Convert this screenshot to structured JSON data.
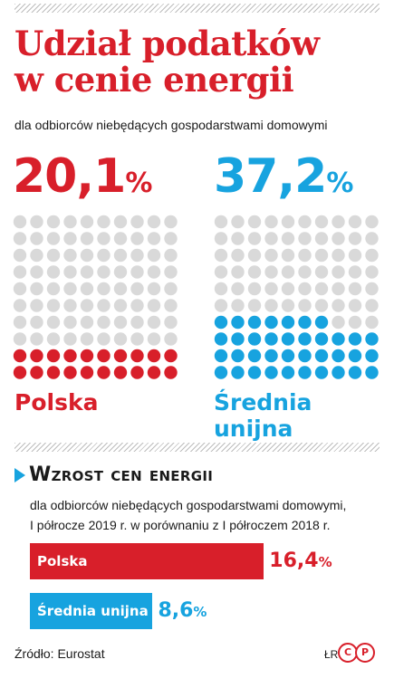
{
  "header": {
    "title_line1": "Udział podatków",
    "title_line2": "w cenie energii",
    "subtitle": "dla odbiorców niebędących gospodarstwami domowymi"
  },
  "section2": {
    "title": "Wzrost cen energii",
    "subtitle_line1": "dla odbiorców niebędących gospodarstwami domowymi,",
    "subtitle_line2": "I półrocze 2019 r. w porównaniu z I półroczem 2018 r."
  },
  "footer": {
    "source": "Źródło: Eurostat",
    "author": "ŁR",
    "logo_letters": [
      "C",
      "P"
    ]
  },
  "colors": {
    "poland": "#d81f2a",
    "eu": "#17a3df",
    "inactive_dot": "#d9d9d9",
    "hatch": "#bdbdbd"
  },
  "icons": [
    "chevron-right-icon",
    "copyright-logo"
  ],
  "chart_data": [
    {
      "type": "waffle",
      "title": "Udział podatków w cenie energii",
      "subtitle": "dla odbiorców niebędących gospodarstwami domowymi",
      "grid": {
        "rows": 10,
        "cols": 10
      },
      "series": [
        {
          "name": "Polska",
          "value": 20.1,
          "display": "20,1",
          "unit": "%"
        },
        {
          "name": "Średnia unijna",
          "value": 37.2,
          "display": "37,2",
          "unit": "%"
        }
      ]
    },
    {
      "type": "bar",
      "orientation": "horizontal",
      "title": "Wzrost cen energii",
      "categories": [
        "Polska",
        "Średnia unijna"
      ],
      "values": [
        16.4,
        8.6
      ],
      "display": [
        "16,4",
        "8,6"
      ],
      "unit": "%",
      "xlim": [
        0,
        20
      ]
    }
  ]
}
